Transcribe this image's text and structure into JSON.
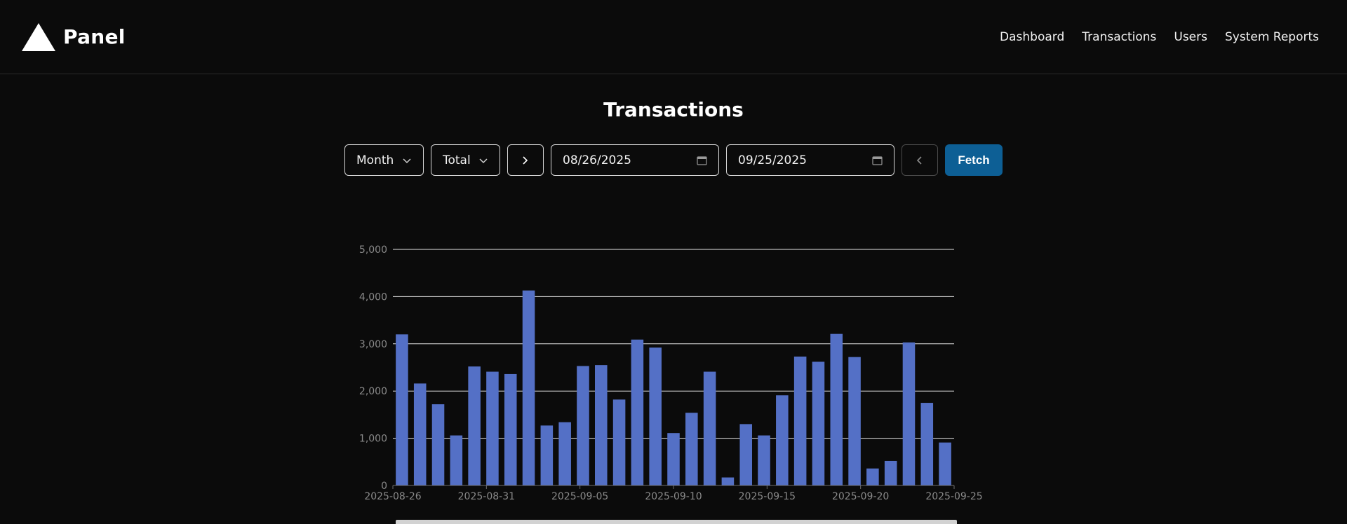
{
  "brand": {
    "name": "Panel",
    "logo_icon": "triangle-logo-icon"
  },
  "nav": {
    "links": [
      {
        "label": "Dashboard"
      },
      {
        "label": "Transactions"
      },
      {
        "label": "Users"
      },
      {
        "label": "System Reports"
      }
    ]
  },
  "page": {
    "title": "Transactions"
  },
  "controls": {
    "period_select": "Month",
    "metric_select": "Total",
    "next_icon": "chevron-right-icon",
    "start_date": "08/26/2025",
    "end_date": "09/25/2025",
    "prev_icon": "chevron-left-icon",
    "fetch_label": "Fetch"
  },
  "colors": {
    "background": "#0b0b0b",
    "bar": "#5470c6",
    "fetch_button": "#0d5f95"
  },
  "chart_data": {
    "type": "bar",
    "title": "",
    "xlabel": "",
    "ylabel": "",
    "ylim": [
      0,
      5000
    ],
    "y_ticks": [
      "0",
      "1,000",
      "2,000",
      "3,000",
      "4,000",
      "5,000"
    ],
    "x_tick_labels": [
      "2025-08-26",
      "2025-08-31",
      "2025-09-05",
      "2025-09-10",
      "2025-09-15",
      "2025-09-20",
      "2025-09-25"
    ],
    "grid": true,
    "categories": [
      "2025-08-26",
      "2025-08-27",
      "2025-08-28",
      "2025-08-29",
      "2025-08-30",
      "2025-08-31",
      "2025-09-01",
      "2025-09-02",
      "2025-09-03",
      "2025-09-04",
      "2025-09-05",
      "2025-09-06",
      "2025-09-07",
      "2025-09-08",
      "2025-09-09",
      "2025-09-10",
      "2025-09-11",
      "2025-09-12",
      "2025-09-13",
      "2025-09-14",
      "2025-09-15",
      "2025-09-16",
      "2025-09-17",
      "2025-09-18",
      "2025-09-19",
      "2025-09-20",
      "2025-09-21",
      "2025-09-22",
      "2025-09-23",
      "2025-09-24",
      "2025-09-25"
    ],
    "values": [
      3200,
      2160,
      1720,
      1060,
      2520,
      2410,
      2360,
      4130,
      1270,
      1340,
      2530,
      2550,
      1820,
      3090,
      2920,
      1110,
      1540,
      2410,
      170,
      1300,
      1060,
      1910,
      2730,
      2620,
      3210,
      2720,
      360,
      520,
      3030,
      1750,
      910
    ]
  }
}
